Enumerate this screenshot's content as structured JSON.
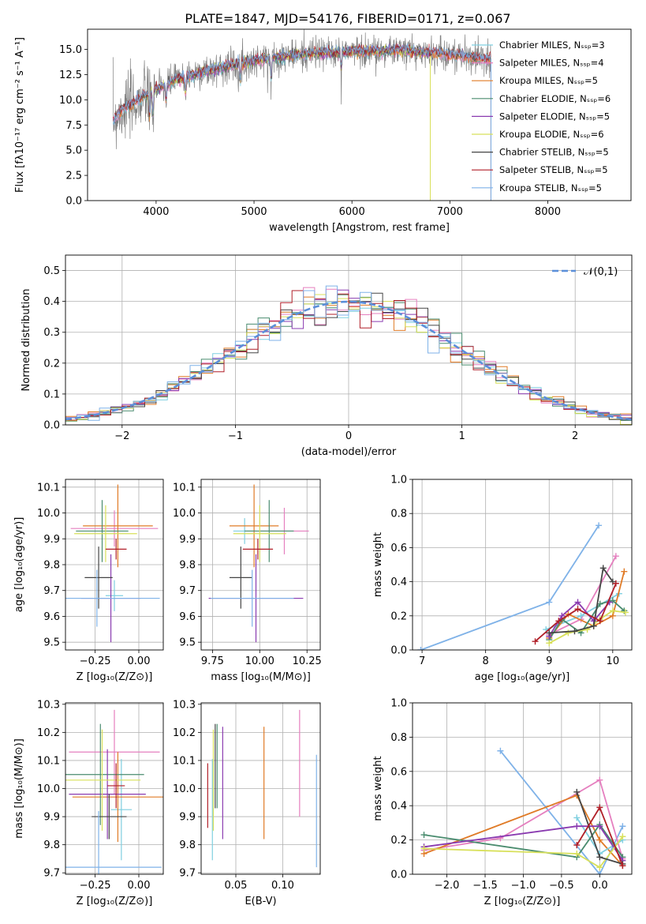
{
  "figure": {
    "title": "PLATE=1847, MJD=54176, FIBERID=0171, z=0.067"
  },
  "colors": {
    "Chabrier MILES": "#7fcfe0",
    "Salpeter MILES": "#e57fbf",
    "Kroupa MILES": "#e07b27",
    "Chabrier ELODIE": "#4a8c6f",
    "Salpeter ELODIE": "#8a3bb0",
    "Kroupa ELODIE": "#d8e05a",
    "Chabrier STELIB": "#454545",
    "Salpeter STELIB": "#b01f28",
    "Kroupa STELIB": "#7fb2e8",
    "data": "#808080",
    "normal": "#5b8fd9"
  },
  "chart_data": [
    {
      "id": "spectrum",
      "type": "line",
      "title": "PLATE=1847, MJD=54176, FIBERID=0171, z=0.067",
      "xlabel": "wavelength [Angstrom, rest frame]",
      "ylabel": "Flux [fλ10⁻¹⁷ erg cm⁻² s⁻¹ A⁻¹]",
      "xlim": [
        3300,
        8850
      ],
      "ylim": [
        0,
        17
      ],
      "xticks": [
        4000,
        5000,
        6000,
        7000,
        8000
      ],
      "yticks": [
        0.0,
        2.5,
        5.0,
        7.5,
        10.0,
        12.5,
        15.0
      ],
      "grid": false,
      "legend_position": "upper right",
      "series": [
        {
          "name": "Chabrier MILES, Nₛₛₚ=3",
          "model": "Chabrier MILES"
        },
        {
          "name": "Salpeter MILES, Nₛₛₚ=4",
          "model": "Salpeter MILES"
        },
        {
          "name": "Kroupa MILES, Nₛₛₚ=5",
          "model": "Kroupa MILES"
        },
        {
          "name": "Chabrier ELODIE, Nₛₛₚ=6",
          "model": "Chabrier ELODIE"
        },
        {
          "name": "Salpeter ELODIE, Nₛₛₚ=5",
          "model": "Salpeter ELODIE"
        },
        {
          "name": "Kroupa ELODIE, Nₛₛₚ=6",
          "model": "Kroupa ELODIE"
        },
        {
          "name": "Chabrier STELIB, Nₛₛₚ=5",
          "model": "Chabrier STELIB"
        },
        {
          "name": "Salpeter STELIB, Nₛₛₚ=5",
          "model": "Salpeter STELIB"
        },
        {
          "name": "Kroupa STELIB, Nₛₛₚ=5",
          "model": "Kroupa STELIB"
        }
      ],
      "continuum": {
        "x": [
          3560,
          3650,
          3750,
          3900,
          4000,
          4200,
          4500,
          4800,
          5200,
          5600,
          6000,
          6500,
          7000,
          7400,
          7500
        ],
        "y": [
          8.0,
          9.0,
          9.5,
          10.5,
          11.0,
          12.0,
          12.8,
          13.5,
          14.2,
          14.6,
          14.8,
          14.9,
          14.5,
          14.0,
          14.2
        ]
      },
      "data_extent": [
        3560,
        7420
      ],
      "model_extents": {
        "MILES": [
          3560,
          7420
        ],
        "ELODIE": [
          3900,
          6800
        ],
        "STELIB": [
          3560,
          7420
        ]
      }
    },
    {
      "id": "residuals",
      "type": "histogram",
      "xlabel": "(data-model)/error",
      "ylabel": "Normed distribution",
      "xlim": [
        -2.5,
        2.5
      ],
      "ylim": [
        0,
        0.55
      ],
      "xticks": [
        -2,
        -1,
        0,
        1,
        2
      ],
      "yticks": [
        0.0,
        0.1,
        0.2,
        0.3,
        0.4,
        0.5
      ],
      "grid": true,
      "legend_position": "upper right",
      "reference": {
        "name": "𝒩(0,1)",
        "mean": 0,
        "sigma": 1
      },
      "bins": 50
    },
    {
      "id": "age-vs-Z",
      "type": "errorbar",
      "xlabel": "Z [log₁₀(Z/Z⊙)]",
      "ylabel": "age  [log₁₀(age/yr)]",
      "xlim": [
        -0.42,
        0.14
      ],
      "ylim": [
        9.47,
        10.13
      ],
      "xticks": [
        -0.25,
        0.0
      ],
      "yticks": [
        9.5,
        9.6,
        9.7,
        9.8,
        9.9,
        10.0,
        10.1
      ],
      "grid": true,
      "points": [
        {
          "model": "Chabrier MILES",
          "x": -0.14,
          "y": 9.68,
          "xerr": 0.05,
          "yerr": [
            0.06,
            0.06
          ]
        },
        {
          "model": "Salpeter MILES",
          "x": -0.14,
          "y": 9.94,
          "xerr": 0.25,
          "yerr": [
            0.07,
            0.07
          ]
        },
        {
          "model": "Kroupa MILES",
          "x": -0.12,
          "y": 9.95,
          "xerr": 0.2,
          "yerr": [
            0.16,
            0.16
          ]
        },
        {
          "model": "Chabrier ELODIE",
          "x": -0.21,
          "y": 9.93,
          "xerr": 0.15,
          "yerr": [
            0.12,
            0.12
          ]
        },
        {
          "model": "Salpeter ELODIE",
          "x": -0.16,
          "y": 9.67,
          "xerr": 0.17,
          "yerr": [
            0.17,
            0.17
          ]
        },
        {
          "model": "Kroupa ELODIE",
          "x": -0.19,
          "y": 9.92,
          "xerr": 0.18,
          "yerr": [
            0.11,
            0.11
          ]
        },
        {
          "model": "Chabrier STELIB",
          "x": -0.23,
          "y": 9.75,
          "xerr": 0.08,
          "yerr": [
            0.12,
            0.12
          ]
        },
        {
          "model": "Salpeter STELIB",
          "x": -0.13,
          "y": 9.86,
          "xerr": 0.06,
          "yerr": [
            0.04,
            0.04
          ]
        },
        {
          "model": "Kroupa STELIB",
          "x": -0.24,
          "y": 9.67,
          "xerr": 0.36,
          "yerr": [
            0.11,
            0.11
          ]
        }
      ]
    },
    {
      "id": "age-vs-mass",
      "type": "errorbar",
      "xlabel": "mass [log₁₀(M/M⊙)]",
      "ylabel": "",
      "xlim": [
        9.69,
        10.32
      ],
      "ylim": [
        9.47,
        10.13
      ],
      "xticks": [
        9.75,
        10.0,
        10.25
      ],
      "yticks": [
        9.5,
        9.6,
        9.7,
        9.8,
        9.9,
        10.0,
        10.1
      ],
      "grid": true,
      "points": [
        {
          "model": "Chabrier MILES",
          "x": 9.92,
          "y": 9.93,
          "xerr": 0.06,
          "yerr": [
            0.05,
            0.05
          ]
        },
        {
          "model": "Salpeter MILES",
          "x": 10.13,
          "y": 9.93,
          "xerr": 0.13,
          "yerr": [
            0.09,
            0.09
          ]
        },
        {
          "model": "Kroupa MILES",
          "x": 9.97,
          "y": 9.95,
          "xerr": 0.13,
          "yerr": [
            0.16,
            0.16
          ]
        },
        {
          "model": "Chabrier ELODIE",
          "x": 10.05,
          "y": 9.93,
          "xerr": 0.13,
          "yerr": [
            0.12,
            0.12
          ]
        },
        {
          "model": "Salpeter ELODIE",
          "x": 9.98,
          "y": 9.67,
          "xerr": 0.25,
          "yerr": [
            0.17,
            0.17
          ]
        },
        {
          "model": "Kroupa ELODIE",
          "x": 10.0,
          "y": 9.92,
          "xerr": 0.14,
          "yerr": [
            0.11,
            0.11
          ]
        },
        {
          "model": "Chabrier STELIB",
          "x": 9.9,
          "y": 9.75,
          "xerr": 0.06,
          "yerr": [
            0.12,
            0.12
          ]
        },
        {
          "model": "Salpeter STELIB",
          "x": 9.99,
          "y": 9.86,
          "xerr": 0.08,
          "yerr": [
            0.04,
            0.04
          ]
        },
        {
          "model": "Kroupa STELIB",
          "x": 9.96,
          "y": 9.67,
          "xerr": 0.22,
          "yerr": [
            0.11,
            0.11
          ]
        }
      ]
    },
    {
      "id": "weight-vs-age",
      "type": "line",
      "xlabel": "age  [log₁₀(age/yr)]",
      "ylabel": "mass weight",
      "xlim": [
        6.85,
        10.3
      ],
      "ylim": [
        0,
        1.0
      ],
      "xticks": [
        7,
        8,
        9,
        10
      ],
      "yticks": [
        0.0,
        0.2,
        0.4,
        0.6,
        0.8,
        1.0
      ],
      "grid": true,
      "series": [
        {
          "model": "Kroupa STELIB",
          "x": [
            6.98,
            9.0,
            9.78
          ],
          "y": [
            0.0,
            0.28,
            0.73
          ]
        },
        {
          "model": "Salpeter MILES",
          "x": [
            9.0,
            9.5,
            10.05
          ],
          "y": [
            0.09,
            0.18,
            0.55
          ]
        },
        {
          "model": "Chabrier MILES",
          "x": [
            8.95,
            9.5,
            10.1
          ],
          "y": [
            0.12,
            0.2,
            0.33
          ]
        },
        {
          "model": "Kroupa MILES",
          "x": [
            9.0,
            9.3,
            9.7,
            10.0,
            10.18
          ],
          "y": [
            0.07,
            0.21,
            0.14,
            0.2,
            0.46
          ]
        },
        {
          "model": "Chabrier ELODIE",
          "x": [
            9.0,
            9.2,
            9.5,
            9.8,
            10.0,
            10.18
          ],
          "y": [
            0.06,
            0.18,
            0.1,
            0.27,
            0.29,
            0.23
          ]
        },
        {
          "model": "Salpeter ELODIE",
          "x": [
            9.0,
            9.2,
            9.45,
            9.7,
            9.95
          ],
          "y": [
            0.08,
            0.2,
            0.28,
            0.17,
            0.28
          ]
        },
        {
          "model": "Kroupa ELODIE",
          "x": [
            9.0,
            9.3,
            9.6,
            9.8,
            10.0,
            10.2
          ],
          "y": [
            0.04,
            0.1,
            0.12,
            0.18,
            0.23,
            0.22
          ]
        },
        {
          "model": "Chabrier STELIB",
          "x": [
            9.0,
            9.4,
            9.7,
            9.85,
            10.0
          ],
          "y": [
            0.1,
            0.11,
            0.14,
            0.48,
            0.4
          ]
        },
        {
          "model": "Salpeter STELIB",
          "x": [
            8.78,
            9.15,
            9.45,
            9.8,
            10.05
          ],
          "y": [
            0.05,
            0.17,
            0.24,
            0.17,
            0.39
          ]
        }
      ]
    },
    {
      "id": "mass-vs-Z",
      "type": "errorbar",
      "xlabel": "Z [log₁₀(Z/Z⊙)]",
      "ylabel": "mass [log₁₀(M/M⊙)]",
      "xlim": [
        -0.42,
        0.14
      ],
      "ylim": [
        9.695,
        10.305
      ],
      "xticks": [
        -0.25,
        0.0
      ],
      "yticks": [
        9.7,
        9.8,
        9.9,
        10.0,
        10.1,
        10.2,
        10.3
      ],
      "grid": true,
      "points": [
        {
          "model": "Chabrier MILES",
          "x": -0.1,
          "y": 9.925,
          "xerr": 0.06,
          "yerr": [
            0.18,
            0.18
          ]
        },
        {
          "model": "Salpeter MILES",
          "x": -0.14,
          "y": 10.13,
          "xerr": 0.26,
          "yerr": [
            0.15,
            0.15
          ]
        },
        {
          "model": "Kroupa MILES",
          "x": -0.12,
          "y": 9.97,
          "xerr": 0.26,
          "yerr": [
            0.16,
            0.16
          ]
        },
        {
          "model": "Chabrier ELODIE",
          "x": -0.22,
          "y": 10.05,
          "xerr": 0.25,
          "yerr": [
            0.18,
            0.18
          ]
        },
        {
          "model": "Salpeter ELODIE",
          "x": -0.18,
          "y": 9.98,
          "xerr": 0.22,
          "yerr": [
            0.16,
            0.16
          ]
        },
        {
          "model": "Kroupa ELODIE",
          "x": -0.21,
          "y": 10.03,
          "xerr": 0.22,
          "yerr": [
            0.18,
            0.18
          ]
        },
        {
          "model": "Chabrier STELIB",
          "x": -0.17,
          "y": 9.9,
          "xerr": 0.1,
          "yerr": [
            0.08,
            0.08
          ]
        },
        {
          "model": "Salpeter STELIB",
          "x": -0.13,
          "y": 10.01,
          "xerr": 0.05,
          "yerr": [
            0.08,
            0.08
          ]
        },
        {
          "model": "Kroupa STELIB",
          "x": -0.23,
          "y": 9.72,
          "xerr": 0.36,
          "yerr": [
            0.2,
            0.2
          ]
        }
      ]
    },
    {
      "id": "mass-vs-ebv",
      "type": "errorbar",
      "xlabel": "E(B-V)",
      "ylabel": "",
      "xlim": [
        0.013,
        0.14
      ],
      "ylim": [
        9.695,
        10.305
      ],
      "xticks": [
        0.05,
        0.1
      ],
      "yticks": [
        9.7,
        9.8,
        9.9,
        10.0,
        10.1,
        10.2,
        10.3
      ],
      "grid": true,
      "points": [
        {
          "model": "Chabrier MILES",
          "x": 0.025,
          "y": 9.925,
          "yerr": [
            0.18,
            0.18
          ]
        },
        {
          "model": "Salpeter MILES",
          "x": 0.118,
          "y": 10.13,
          "yerr": [
            0.23,
            0.15
          ]
        },
        {
          "model": "Kroupa MILES",
          "x": 0.08,
          "y": 10.02,
          "yerr": [
            0.2,
            0.2
          ]
        },
        {
          "model": "Chabrier ELODIE",
          "x": 0.03,
          "y": 10.05,
          "yerr": [
            0.12,
            0.18
          ]
        },
        {
          "model": "Salpeter ELODIE",
          "x": 0.036,
          "y": 10.02,
          "yerr": [
            0.2,
            0.2
          ]
        },
        {
          "model": "Kroupa ELODIE",
          "x": 0.026,
          "y": 10.03,
          "yerr": [
            0.18,
            0.18
          ]
        },
        {
          "model": "Chabrier STELIB",
          "x": 0.028,
          "y": 10.07,
          "yerr": [
            0.14,
            0.16
          ]
        },
        {
          "model": "Salpeter STELIB",
          "x": 0.02,
          "y": 9.97,
          "yerr": [
            0.11,
            0.12
          ]
        },
        {
          "model": "Kroupa STELIB",
          "x": 0.136,
          "y": 9.92,
          "yerr": [
            0.2,
            0.2
          ]
        }
      ]
    },
    {
      "id": "weight-vs-Z",
      "type": "line",
      "xlabel": "Z [log₁₀(Z/Z⊙)]",
      "ylabel": "mass weight",
      "xlim": [
        -2.45,
        0.42
      ],
      "ylim": [
        0,
        1.0
      ],
      "xticks": [
        -2.0,
        -1.5,
        -1.0,
        -0.5,
        0.0
      ],
      "yticks": [
        0.0,
        0.2,
        0.4,
        0.6,
        0.8,
        1.0
      ],
      "grid": true,
      "series": [
        {
          "model": "Kroupa STELIB",
          "x": [
            -1.3,
            0.0,
            0.3
          ],
          "y": [
            0.72,
            0.0,
            0.28
          ]
        },
        {
          "model": "Salpeter MILES",
          "x": [
            -2.3,
            -1.3,
            0.0,
            0.3
          ],
          "y": [
            0.14,
            0.21,
            0.55,
            0.09
          ]
        },
        {
          "model": "Kroupa MILES",
          "x": [
            -2.3,
            -0.3,
            0.0,
            0.3
          ],
          "y": [
            0.12,
            0.46,
            0.2,
            0.05
          ]
        },
        {
          "model": "Chabrier MILES",
          "x": [
            -0.3,
            0.0,
            0.3
          ],
          "y": [
            0.33,
            0.12,
            0.2
          ]
        },
        {
          "model": "Chabrier ELODIE",
          "x": [
            -2.3,
            -0.3,
            0.0,
            0.3
          ],
          "y": [
            0.23,
            0.1,
            0.29,
            0.1
          ]
        },
        {
          "model": "Salpeter ELODIE",
          "x": [
            -2.3,
            -0.3,
            0.0,
            0.3
          ],
          "y": [
            0.16,
            0.28,
            0.28,
            0.08
          ]
        },
        {
          "model": "Kroupa ELODIE",
          "x": [
            -2.3,
            -0.3,
            0.0,
            0.3
          ],
          "y": [
            0.15,
            0.12,
            0.04,
            0.22
          ]
        },
        {
          "model": "Chabrier STELIB",
          "x": [
            -0.3,
            0.0,
            0.3
          ],
          "y": [
            0.48,
            0.1,
            0.06
          ]
        },
        {
          "model": "Salpeter STELIB",
          "x": [
            -0.3,
            0.0,
            0.3
          ],
          "y": [
            0.17,
            0.39,
            0.05
          ]
        }
      ]
    }
  ]
}
